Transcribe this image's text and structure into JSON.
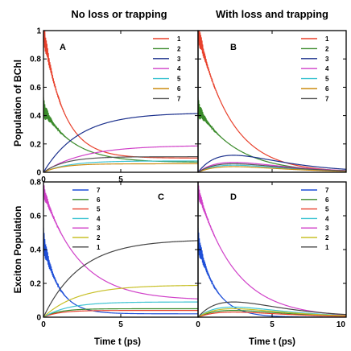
{
  "column_titles": [
    "No loss or trapping",
    "With loss and trapping"
  ],
  "ylabel_top": "Population of BChl",
  "ylabel_bottom": "Exciton Population",
  "xlabel": "Time t (ps)",
  "chart_data": [
    {
      "type": "line",
      "panel": "A",
      "xlim": [
        0,
        10
      ],
      "ylim": [
        0,
        1
      ],
      "xticks": [
        "0",
        "5",
        ""
      ],
      "yticks": [
        "0",
        "0.2",
        "0.4",
        "0.6",
        "0.8",
        "1"
      ],
      "legend_placement": "top-right",
      "series": [
        {
          "name": "1",
          "color": "#e8412c",
          "y0": 1.0,
          "yinf": 0.1,
          "tau": 1.3,
          "osc": 0.1
        },
        {
          "name": "2",
          "color": "#3a8a2a",
          "y0": 0.45,
          "yinf": 0.07,
          "tau": 1.9,
          "osc": 0.08
        },
        {
          "name": "3",
          "color": "#1a2f8c",
          "y0": 0.0,
          "yinf": 0.42,
          "tau": 2.3,
          "osc": 0
        },
        {
          "name": "4",
          "color": "#d040c8",
          "y0": 0.0,
          "yinf": 0.19,
          "tau": 2.6,
          "osc": 0
        },
        {
          "name": "5",
          "color": "#3fc4d2",
          "y0": 0.0,
          "yinf": 0.08,
          "tau": 1.6,
          "osc": 0
        },
        {
          "name": "6",
          "color": "#cc8c10",
          "y0": 0.0,
          "yinf": 0.06,
          "tau": 1.2,
          "osc": 0
        },
        {
          "name": "7",
          "color": "#555555",
          "y0": 0.0,
          "yinf": 0.11,
          "tau": 1.4,
          "osc": 0
        }
      ]
    },
    {
      "type": "line",
      "panel": "B",
      "xlim": [
        0,
        10
      ],
      "ylim": [
        0,
        1
      ],
      "xticks": [
        "",
        "",
        ""
      ],
      "yticks": [
        "",
        "",
        "",
        "",
        "",
        ""
      ],
      "legend_placement": "top-right",
      "series": [
        {
          "name": "1",
          "color": "#e8412c",
          "y0": 1.0,
          "yinf": 0.0,
          "tau": 2.2,
          "osc": 0.1,
          "rise": 0
        },
        {
          "name": "2",
          "color": "#3a8a2a",
          "y0": 0.45,
          "yinf": 0.0,
          "tau": 2.6,
          "osc": 0.08,
          "rise": 0
        },
        {
          "name": "3",
          "color": "#1a2f8c",
          "y0": 0.0,
          "yinf": 0.0,
          "tau": 2.4,
          "osc": 0,
          "rise": 0.12
        },
        {
          "name": "4",
          "color": "#d040c8",
          "y0": 0.0,
          "yinf": 0.0,
          "tau": 2.4,
          "osc": 0,
          "rise": 0.07
        },
        {
          "name": "5",
          "color": "#3fc4d2",
          "y0": 0.0,
          "yinf": 0.0,
          "tau": 2.4,
          "osc": 0,
          "rise": 0.05
        },
        {
          "name": "6",
          "color": "#cc8c10",
          "y0": 0.0,
          "yinf": 0.0,
          "tau": 2.4,
          "osc": 0,
          "rise": 0.04
        },
        {
          "name": "7",
          "color": "#555555",
          "y0": 0.0,
          "yinf": 0.0,
          "tau": 2.4,
          "osc": 0,
          "rise": 0.06
        }
      ]
    },
    {
      "type": "line",
      "panel": "C",
      "xlim": [
        0,
        10
      ],
      "ylim": [
        0,
        0.8
      ],
      "xticks": [
        "0",
        "5",
        ""
      ],
      "yticks": [
        "0",
        "0.2",
        "0.4",
        "0.6",
        "0.8"
      ],
      "legend_placement": "top-left",
      "series": [
        {
          "name": "7",
          "color": "#1f4fd8",
          "y0": 0.45,
          "yinf": 0.02,
          "tau": 1.0,
          "osc": 0.08
        },
        {
          "name": "6",
          "color": "#3a8a2a",
          "y0": 0.0,
          "yinf": 0.05,
          "tau": 1.0,
          "osc": 0
        },
        {
          "name": "5",
          "color": "#e8412c",
          "y0": 0.0,
          "yinf": 0.04,
          "tau": 1.0,
          "osc": 0
        },
        {
          "name": "4",
          "color": "#3fc4d2",
          "y0": 0.0,
          "yinf": 0.09,
          "tau": 1.6,
          "osc": 0
        },
        {
          "name": "3",
          "color": "#d040c8",
          "y0": 0.75,
          "yinf": 0.1,
          "tau": 2.3,
          "osc": 0.05
        },
        {
          "name": "2",
          "color": "#c8c028",
          "y0": 0.0,
          "yinf": 0.19,
          "tau": 2.2,
          "osc": 0
        },
        {
          "name": "1",
          "color": "#444444",
          "y0": 0.0,
          "yinf": 0.46,
          "tau": 2.4,
          "osc": 0
        }
      ]
    },
    {
      "type": "line",
      "panel": "D",
      "xlim": [
        0,
        10
      ],
      "ylim": [
        0,
        0.8
      ],
      "xticks": [
        "0",
        "5",
        "10"
      ],
      "yticks": [
        "",
        "",
        "",
        "",
        ""
      ],
      "legend_placement": "top-right",
      "series": [
        {
          "name": "7",
          "color": "#1f4fd8",
          "y0": 0.45,
          "yinf": 0.0,
          "tau": 1.2,
          "osc": 0.08,
          "rise": 0
        },
        {
          "name": "6",
          "color": "#3a8a2a",
          "y0": 0.0,
          "yinf": 0.0,
          "tau": 2.4,
          "osc": 0,
          "rise": 0.04
        },
        {
          "name": "5",
          "color": "#e8412c",
          "y0": 0.0,
          "yinf": 0.0,
          "tau": 2.4,
          "osc": 0,
          "rise": 0.03
        },
        {
          "name": "4",
          "color": "#3fc4d2",
          "y0": 0.0,
          "yinf": 0.0,
          "tau": 2.4,
          "osc": 0,
          "rise": 0.06
        },
        {
          "name": "3",
          "color": "#d040c8",
          "y0": 0.75,
          "yinf": 0.0,
          "tau": 2.5,
          "osc": 0.05,
          "rise": 0
        },
        {
          "name": "2",
          "color": "#c8c028",
          "y0": 0.0,
          "yinf": 0.0,
          "tau": 2.4,
          "osc": 0,
          "rise": 0.05
        },
        {
          "name": "1",
          "color": "#444444",
          "y0": 0.0,
          "yinf": 0.0,
          "tau": 2.4,
          "osc": 0,
          "rise": 0.09
        }
      ]
    }
  ]
}
